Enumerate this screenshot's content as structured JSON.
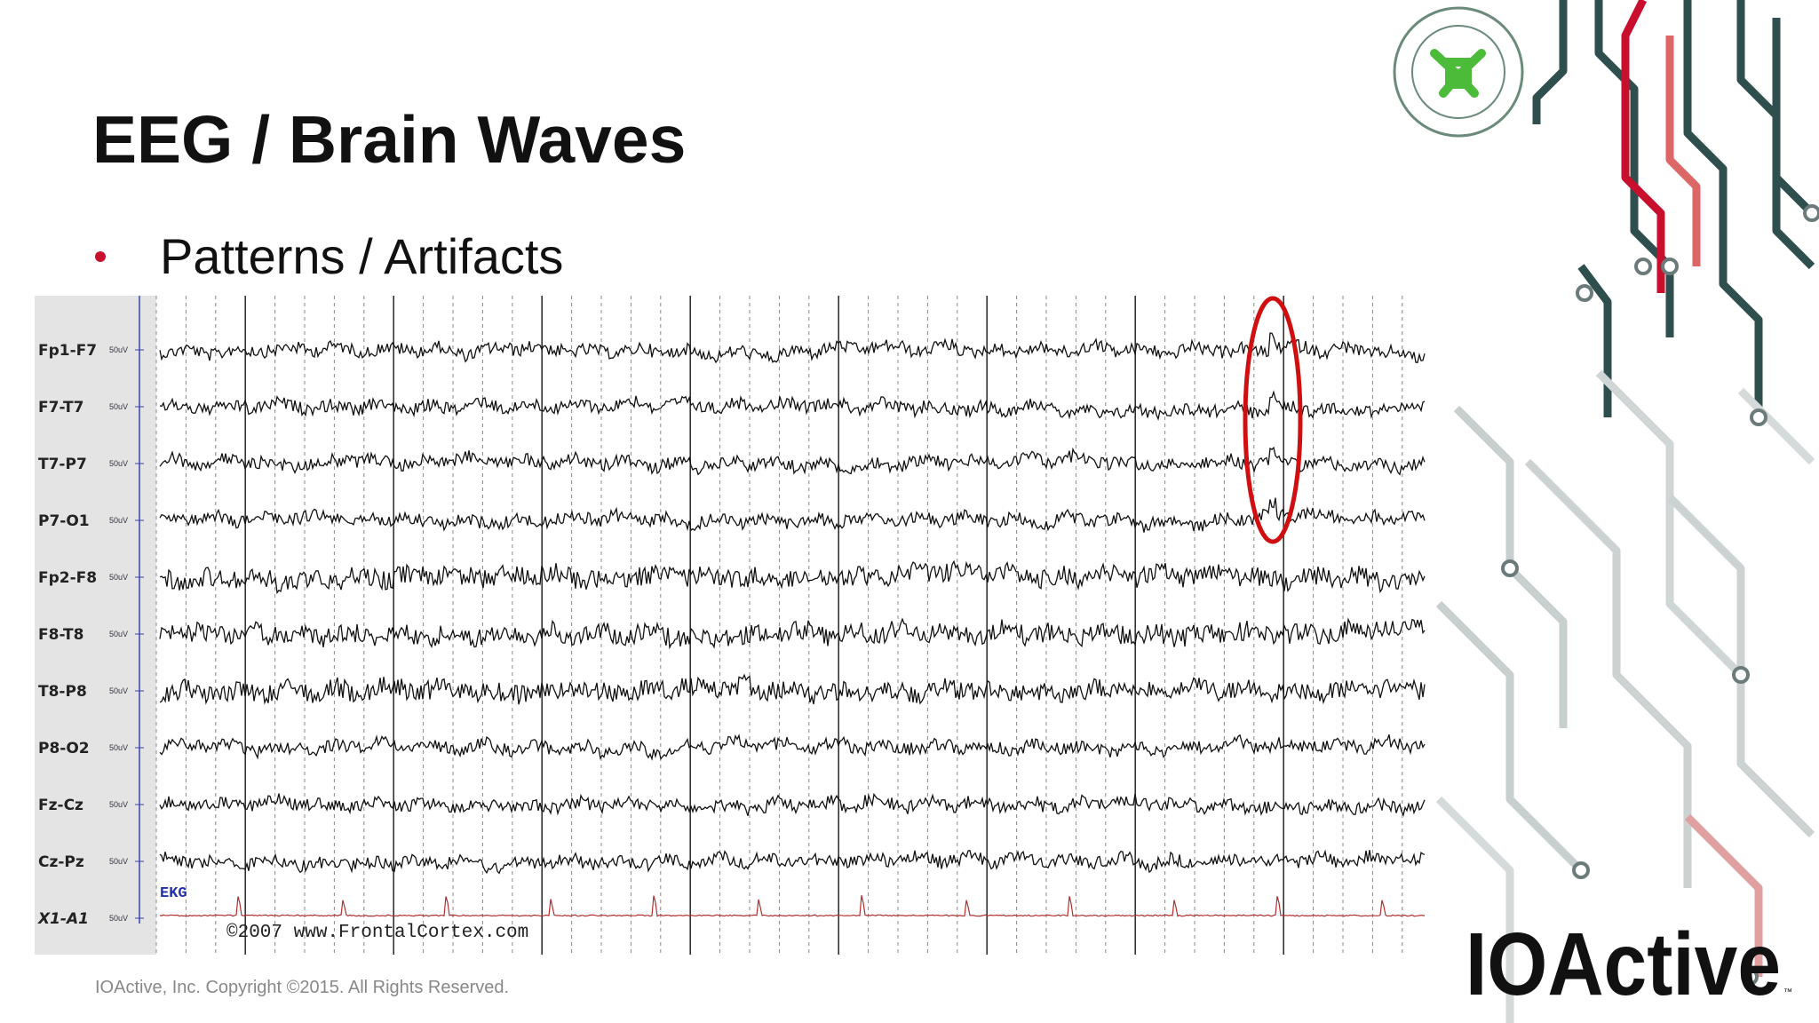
{
  "header": {
    "title": "EEG / Brain Waves",
    "bullet": "Patterns / Artifacts"
  },
  "eeg": {
    "channels": [
      {
        "label": "Fp1-F7",
        "scale": "50uV"
      },
      {
        "label": "F7-T7",
        "scale": "50uV"
      },
      {
        "label": "T7-P7",
        "scale": "50uV"
      },
      {
        "label": "P7-O1",
        "scale": "50uV"
      },
      {
        "label": "Fp2-F8",
        "scale": "50uV"
      },
      {
        "label": "F8-T8",
        "scale": "50uV"
      },
      {
        "label": "T8-P8",
        "scale": "50uV"
      },
      {
        "label": "P8-O2",
        "scale": "50uV"
      },
      {
        "label": "Fz-Cz",
        "scale": "50uV"
      },
      {
        "label": "Cz-Pz",
        "scale": "50uV"
      },
      {
        "label": "X1-A1",
        "scale": "50uV"
      }
    ],
    "ekg_label": "EKG",
    "watermark": "©2007 www.FrontalCortex.com"
  },
  "footer": {
    "copyright": "IOActive, Inc. Copyright ©2015.  All Rights Reserved."
  },
  "logo": {
    "name": "IOActive",
    "mark": "™"
  }
}
